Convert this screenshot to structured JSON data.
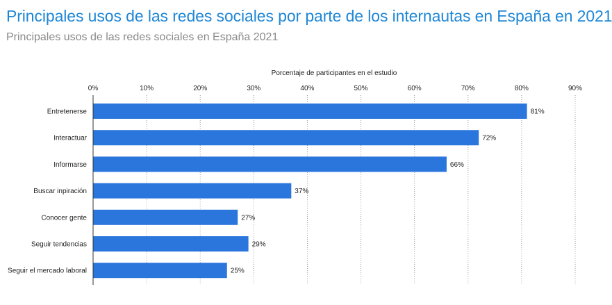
{
  "header": {
    "title": "Principales usos de las redes sociales por parte de los internautas en España en 2021",
    "subtitle": "Principales usos de las redes sociales en España 2021"
  },
  "chart_data": {
    "type": "bar",
    "orientation": "horizontal",
    "xlabel": "Porcentaje de participantes en el estudio",
    "xlim": [
      0,
      90
    ],
    "ticks": [
      0,
      10,
      20,
      30,
      40,
      50,
      60,
      70,
      80,
      90
    ],
    "tick_labels": [
      "0%",
      "10%",
      "20%",
      "30%",
      "40%",
      "50%",
      "60%",
      "70%",
      "80%",
      "90%"
    ],
    "x_axis_position": "top",
    "grid": "vertical-dotted",
    "bar_color": "#2b76dd",
    "categories": [
      "Entretenerse",
      "Interactuar",
      "Informarse",
      "Buscar inpiración",
      "Conocer gente",
      "Seguir tendencias",
      "Seguir el mercado laboral"
    ],
    "values": [
      81,
      72,
      66,
      37,
      27,
      29,
      25
    ],
    "value_labels": [
      "81%",
      "72%",
      "66%",
      "37%",
      "27%",
      "29%",
      "25%"
    ]
  }
}
